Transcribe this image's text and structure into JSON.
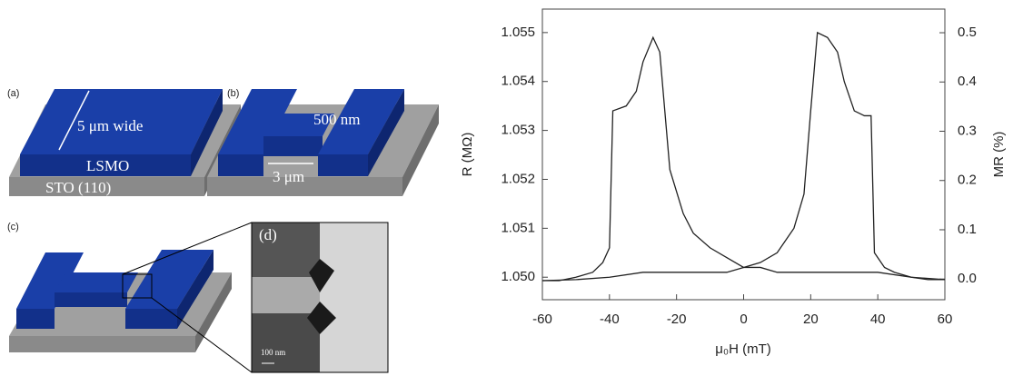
{
  "panels": {
    "a": {
      "label": "(a)",
      "width_text": "5 μm wide",
      "film": "LSMO",
      "substrate": "STO (110)"
    },
    "b": {
      "label": "(b)",
      "gap_text": "500 nm",
      "length_text": "3 μm"
    },
    "c": {
      "label": "(c)"
    },
    "d": {
      "label": "(d)",
      "scale_text": "100 nm"
    }
  },
  "chart_data": {
    "type": "line",
    "xlabel": "μ₀H (mT)",
    "ylabel": "R (MΩ)",
    "y2label": "MR (%)",
    "xlim": [
      -60,
      60
    ],
    "xticks": [
      -60,
      -40,
      -20,
      0,
      20,
      40,
      60
    ],
    "ylim": [
      1.04954,
      1.05548
    ],
    "yticks": [
      {
        "value": 1.05,
        "label": "1.050"
      },
      {
        "value": 1.051,
        "label": "1.051"
      },
      {
        "value": 1.052,
        "label": "1.052"
      },
      {
        "value": 1.053,
        "label": "1.053"
      },
      {
        "value": 1.054,
        "label": "1.054"
      },
      {
        "value": 1.055,
        "label": "1.055"
      }
    ],
    "y2lim": [
      -0.042,
      0.548
    ],
    "y2ticks": [
      {
        "value": 0,
        "label": "0.0"
      },
      0.1,
      0.2,
      0.3,
      0.4,
      0.5
    ],
    "series": [
      {
        "color": "#222222",
        "x": [
          -60,
          -55,
          -50,
          -45,
          -42,
          -40,
          -39,
          -35,
          -32,
          -30,
          -27,
          -25,
          -22,
          -18,
          -15,
          -10,
          -5,
          0,
          5,
          10,
          20,
          30,
          40,
          50,
          60
        ],
        "values": [
          1.04993,
          1.04993,
          1.05,
          1.0501,
          1.0503,
          1.0506,
          1.0534,
          1.0535,
          1.0538,
          1.0544,
          1.0549,
          1.0546,
          1.0522,
          1.0513,
          1.0509,
          1.0506,
          1.0504,
          1.0502,
          1.0502,
          1.0501,
          1.0501,
          1.0501,
          1.0501,
          1.05,
          1.04995
        ]
      },
      {
        "color": "#222222",
        "x": [
          -60,
          -50,
          -40,
          -30,
          -20,
          -10,
          -5,
          0,
          5,
          10,
          15,
          18,
          20,
          22,
          25,
          28,
          30,
          33,
          36,
          38,
          39,
          42,
          45,
          50,
          55,
          60
        ],
        "values": [
          1.04993,
          1.04995,
          1.05,
          1.0501,
          1.0501,
          1.0501,
          1.0501,
          1.0502,
          1.0503,
          1.0505,
          1.051,
          1.0517,
          1.0534,
          1.055,
          1.0549,
          1.0546,
          1.054,
          1.0534,
          1.0533,
          1.0533,
          1.0505,
          1.0502,
          1.0501,
          1.05,
          1.04995,
          1.04995
        ]
      }
    ]
  }
}
